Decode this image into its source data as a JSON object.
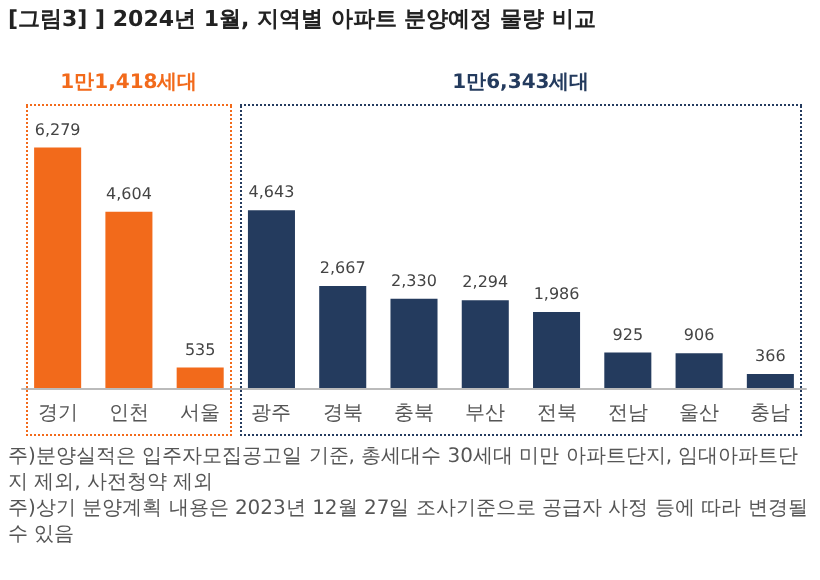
{
  "chart_data": {
    "type": "bar",
    "title": "[그림3] ] 2024년 1월, 지역별 아파트 분양예정 물량 비교",
    "categories": [
      "경기",
      "인천",
      "서울",
      "광주",
      "경북",
      "충북",
      "부산",
      "전북",
      "전남",
      "울산",
      "충남"
    ],
    "values": [
      6279,
      4604,
      535,
      4643,
      2667,
      2330,
      2294,
      1986,
      925,
      906,
      366
    ],
    "colors": [
      "#f26a1b",
      "#f26a1b",
      "#f26a1b",
      "#243b5e",
      "#243b5e",
      "#243b5e",
      "#243b5e",
      "#243b5e",
      "#243b5e",
      "#243b5e",
      "#243b5e"
    ],
    "value_labels": [
      "6,279",
      "4,604",
      "535",
      "4,643",
      "2,667",
      "2,330",
      "2,294",
      "1,986",
      "925",
      "906",
      "366"
    ],
    "annotations": [
      "1만1,418세대",
      "1만6,343세대",
      "주)분양실적은 입주자모집공고일 기준, 총세대수 30세대 미만 아파트단지, 임대아파트단지 제외, 사전청약 제외",
      "주)상기 분양계획 내용은 2023년 12월 27일 조사기준으로 공급자 사정 등에 따라 변경될 수 있음"
    ]
  }
}
